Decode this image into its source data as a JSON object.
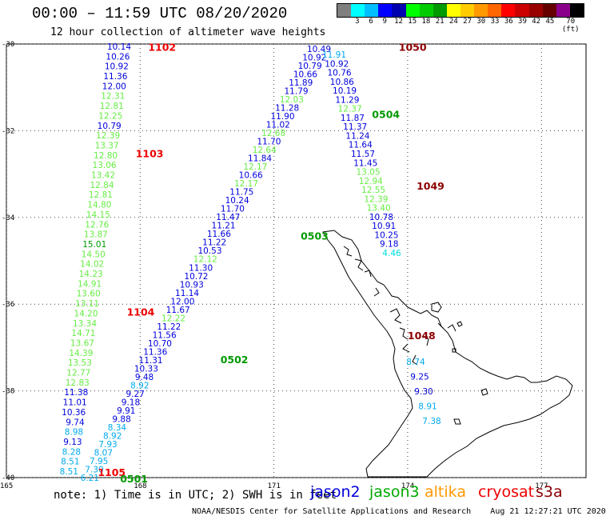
{
  "header": {
    "title": "00:00 – 11:59 UTC 08/20/2020",
    "subtitle": "12 hour collection of altimeter wave heights"
  },
  "legend": {
    "colors": [
      "#7f7f7f",
      "#00ffff",
      "#00bfff",
      "#0000ff",
      "#0000b0",
      "#00ff00",
      "#00cc00",
      "#009900",
      "#ffff00",
      "#ffcc00",
      "#ff9900",
      "#ff6600",
      "#ff0000",
      "#cc0000",
      "#990000",
      "#660000",
      "#8b008b",
      "#000000"
    ],
    "labels": [
      "3",
      "6",
      "9",
      "12",
      "15",
      "18",
      "21",
      "24",
      "27",
      "30",
      "33",
      "36",
      "39",
      "42",
      "45",
      "70 (ft)"
    ]
  },
  "map": {
    "lat_ticks": [
      "-30",
      "-32",
      "-34",
      "-36",
      "-38",
      "-40"
    ],
    "lon_ticks": [
      "165",
      "168",
      "171",
      "174",
      "177"
    ]
  },
  "tracks": [
    {
      "label": "1102",
      "color": "#ee0000",
      "lat": -30.05,
      "lon": 168.18
    },
    {
      "label": "1103",
      "color": "#ee0000",
      "lat": -32.5,
      "lon": 167.9
    },
    {
      "label": "1104",
      "color": "#ee0000",
      "lat": -36.15,
      "lon": 167.7
    },
    {
      "label": "1105",
      "color": "#ee0000",
      "lat": -39.85,
      "lon": 167.05
    },
    {
      "label": "0501",
      "color": "#009900",
      "lat": -40.0,
      "lon": 167.55
    },
    {
      "label": "0502",
      "color": "#009900",
      "lat": -37.25,
      "lon": 169.8
    },
    {
      "label": "0503",
      "color": "#009900",
      "lat": -34.4,
      "lon": 171.6
    },
    {
      "label": "0504",
      "color": "#009900",
      "lat": -31.6,
      "lon": 173.2
    },
    {
      "label": "1050",
      "color": "#8b0000",
      "lat": -30.05,
      "lon": 173.8
    },
    {
      "label": "1049",
      "color": "#8b0000",
      "lat": -33.25,
      "lon": 174.2
    },
    {
      "label": "1048",
      "color": "#8b0000",
      "lat": -36.7,
      "lon": 174.0
    }
  ],
  "swh_track_1": [
    {
      "v": "10.14",
      "c": "#0000dd"
    },
    {
      "v": "10.26",
      "c": "#0000dd"
    },
    {
      "v": "10.92",
      "c": "#0000dd"
    },
    {
      "v": "11.36",
      "c": "#0000dd"
    },
    {
      "v": "12.00",
      "c": "#0000dd"
    },
    {
      "v": "12.31",
      "c": "#66ee44"
    },
    {
      "v": "12.81",
      "c": "#66ee44"
    },
    {
      "v": "12.25",
      "c": "#66ee44"
    },
    {
      "v": "10.79",
      "c": "#0000dd"
    },
    {
      "v": "12.39",
      "c": "#66ee44"
    },
    {
      "v": "13.37",
      "c": "#66ee44"
    },
    {
      "v": "12.80",
      "c": "#66ee44"
    },
    {
      "v": "13.06",
      "c": "#66ee44"
    },
    {
      "v": "13.42",
      "c": "#66ee44"
    },
    {
      "v": "12.84",
      "c": "#66ee44"
    },
    {
      "v": "12.81",
      "c": "#66ee44"
    },
    {
      "v": "14.80",
      "c": "#66ee44"
    },
    {
      "v": "14.15",
      "c": "#66ee44"
    },
    {
      "v": "12.76",
      "c": "#66ee44"
    },
    {
      "v": "13.87",
      "c": "#66ee44"
    },
    {
      "v": "15.01",
      "c": "#009900"
    },
    {
      "v": "14.50",
      "c": "#66ee44"
    },
    {
      "v": "14.02",
      "c": "#66ee44"
    },
    {
      "v": "14.23",
      "c": "#66ee44"
    },
    {
      "v": "14.91",
      "c": "#66ee44"
    },
    {
      "v": "13.60",
      "c": "#66ee44"
    },
    {
      "v": "13.11",
      "c": "#66ee44"
    },
    {
      "v": "14.20",
      "c": "#66ee44"
    },
    {
      "v": "13.34",
      "c": "#66ee44"
    },
    {
      "v": "14.71",
      "c": "#66ee44"
    },
    {
      "v": "13.67",
      "c": "#66ee44"
    },
    {
      "v": "14.39",
      "c": "#66ee44"
    },
    {
      "v": "13.53",
      "c": "#66ee44"
    },
    {
      "v": "12.77",
      "c": "#66ee44"
    },
    {
      "v": "12.83",
      "c": "#66ee44"
    },
    {
      "v": "11.38",
      "c": "#0000dd"
    },
    {
      "v": "11.01",
      "c": "#0000dd"
    },
    {
      "v": "10.36",
      "c": "#0000dd"
    },
    {
      "v": "9.74",
      "c": "#0000dd"
    },
    {
      "v": "8.98",
      "c": "#00aaee"
    },
    {
      "v": "9.13",
      "c": "#0000dd"
    },
    {
      "v": "8.28",
      "c": "#00aaee"
    },
    {
      "v": "8.51",
      "c": "#00aaee"
    },
    {
      "v": "8.51",
      "c": "#00aaee"
    }
  ],
  "swh_track_2": [
    {
      "v": "6.21",
      "c": "#00aaee"
    },
    {
      "v": "7.30",
      "c": "#00aaee"
    },
    {
      "v": "7.95",
      "c": "#00aaee"
    },
    {
      "v": "8.07",
      "c": "#00aaee"
    },
    {
      "v": "7.93",
      "c": "#00aaee"
    },
    {
      "v": "8.92",
      "c": "#00aaee"
    },
    {
      "v": "8.34",
      "c": "#00aaee"
    },
    {
      "v": "9.88",
      "c": "#0000dd"
    },
    {
      "v": "9.91",
      "c": "#0000dd"
    },
    {
      "v": "9.18",
      "c": "#0000dd"
    },
    {
      "v": "9.27",
      "c": "#0000dd"
    },
    {
      "v": "8.92",
      "c": "#00aaee"
    },
    {
      "v": "9.48",
      "c": "#0000dd"
    },
    {
      "v": "10.33",
      "c": "#0000dd"
    },
    {
      "v": "11.31",
      "c": "#0000dd"
    },
    {
      "v": "11.36",
      "c": "#0000dd"
    },
    {
      "v": "10.70",
      "c": "#0000dd"
    },
    {
      "v": "11.56",
      "c": "#0000dd"
    },
    {
      "v": "11.22",
      "c": "#0000dd"
    },
    {
      "v": "12.22",
      "c": "#66ee44"
    },
    {
      "v": "11.67",
      "c": "#0000dd"
    },
    {
      "v": "12.00",
      "c": "#0000dd"
    },
    {
      "v": "11.14",
      "c": "#0000dd"
    },
    {
      "v": "10.93",
      "c": "#0000dd"
    },
    {
      "v": "10.72",
      "c": "#0000dd"
    },
    {
      "v": "11.30",
      "c": "#0000dd"
    },
    {
      "v": "12.12",
      "c": "#66ee44"
    },
    {
      "v": "10.53",
      "c": "#0000dd"
    },
    {
      "v": "11.22",
      "c": "#0000dd"
    },
    {
      "v": "11.66",
      "c": "#0000dd"
    },
    {
      "v": "11.21",
      "c": "#0000dd"
    },
    {
      "v": "11.47",
      "c": "#0000dd"
    },
    {
      "v": "11.70",
      "c": "#0000dd"
    },
    {
      "v": "10.24",
      "c": "#0000dd"
    },
    {
      "v": "11.75",
      "c": "#0000dd"
    },
    {
      "v": "12.17",
      "c": "#66ee44"
    },
    {
      "v": "10.66",
      "c": "#0000dd"
    },
    {
      "v": "12.17",
      "c": "#66ee44"
    },
    {
      "v": "11.84",
      "c": "#0000dd"
    },
    {
      "v": "12.64",
      "c": "#66ee44"
    },
    {
      "v": "11.70",
      "c": "#0000dd"
    },
    {
      "v": "12.68",
      "c": "#66ee44"
    },
    {
      "v": "11.02",
      "c": "#0000dd"
    },
    {
      "v": "11.90",
      "c": "#0000dd"
    },
    {
      "v": "11.28",
      "c": "#0000dd"
    },
    {
      "v": "12.03",
      "c": "#66ee44"
    },
    {
      "v": "11.79",
      "c": "#0000dd"
    },
    {
      "v": "11.89",
      "c": "#0000dd"
    },
    {
      "v": "10.66",
      "c": "#0000dd"
    },
    {
      "v": "10.79",
      "c": "#0000dd"
    },
    {
      "v": "10.92",
      "c": "#0000dd"
    },
    {
      "v": "10.49",
      "c": "#0000dd"
    }
  ],
  "swh_track_3": [
    {
      "v": "11.91",
      "c": "#00aaee"
    },
    {
      "v": "10.92",
      "c": "#0000dd"
    },
    {
      "v": "10.76",
      "c": "#0000dd"
    },
    {
      "v": "10.86",
      "c": "#0000dd"
    },
    {
      "v": "10.19",
      "c": "#0000dd"
    },
    {
      "v": "11.29",
      "c": "#0000dd"
    },
    {
      "v": "12.37",
      "c": "#66ee44"
    },
    {
      "v": "11.87",
      "c": "#0000dd"
    },
    {
      "v": "11.37",
      "c": "#0000dd"
    },
    {
      "v": "11.24",
      "c": "#0000dd"
    },
    {
      "v": "11.64",
      "c": "#0000dd"
    },
    {
      "v": "11.57",
      "c": "#0000dd"
    },
    {
      "v": "11.45",
      "c": "#0000dd"
    },
    {
      "v": "13.05",
      "c": "#66ee44"
    },
    {
      "v": "12.94",
      "c": "#66ee44"
    },
    {
      "v": "12.55",
      "c": "#66ee44"
    },
    {
      "v": "12.39",
      "c": "#66ee44"
    },
    {
      "v": "13.40",
      "c": "#66ee44"
    },
    {
      "v": "10.78",
      "c": "#0000dd"
    },
    {
      "v": "10.91",
      "c": "#0000dd"
    },
    {
      "v": "10.25",
      "c": "#0000dd"
    },
    {
      "v": "9.18",
      "c": "#0000dd"
    },
    {
      "v": "4.46",
      "c": "#00dddd"
    }
  ],
  "swh_track_3_south": [
    {
      "v": "8.74",
      "c": "#00aaee"
    },
    {
      "v": "9.25",
      "c": "#0000dd"
    },
    {
      "v": "9.30",
      "c": "#0000dd"
    },
    {
      "v": "8.91",
      "c": "#00aaee"
    },
    {
      "v": "7.38",
      "c": "#00aaee"
    }
  ],
  "footer": {
    "note": "note:  1) Time is in UTC; 2) SWH is in feet",
    "satellites": [
      {
        "name": "jason2",
        "color": "#0000dd"
      },
      {
        "name": "jason3",
        "color": "#00aa00"
      },
      {
        "name": "altika",
        "color": "#ff9900"
      },
      {
        "name": "cryosat",
        "color": "#ee0000"
      },
      {
        "name": "s3a",
        "color": "#8b0000"
      }
    ],
    "credit": "NOAA/NESDIS Center for Satellite Applications and Research",
    "timestamp": "Aug 21 12:27:21 UTC 2020"
  }
}
